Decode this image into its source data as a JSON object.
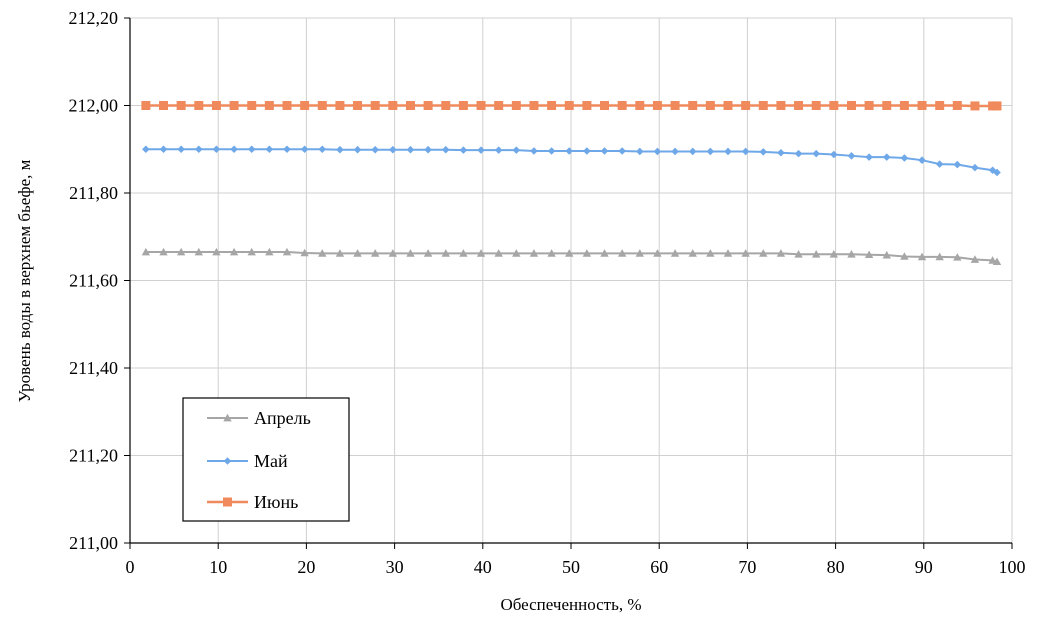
{
  "chart_data": {
    "type": "line",
    "title": "",
    "xlabel": "Обеспеченность, %",
    "ylabel": "Уровень воды в верхнем бьефе, м",
    "xlim": [
      0,
      100
    ],
    "ylim": [
      211.0,
      212.2
    ],
    "x_ticks": [
      0,
      10,
      20,
      30,
      40,
      50,
      60,
      70,
      80,
      90,
      100
    ],
    "x_tick_labels": [
      "0",
      "10",
      "20",
      "30",
      "40",
      "50",
      "60",
      "70",
      "80",
      "90",
      "100"
    ],
    "y_ticks": [
      211.0,
      211.2,
      211.4,
      211.6,
      211.8,
      212.0,
      212.2
    ],
    "y_tick_labels": [
      "211,00",
      "211,20",
      "211,40",
      "211,60",
      "211,80",
      "212,00",
      "212,20"
    ],
    "grid": true,
    "legend_position": "bottom-left",
    "series": [
      {
        "name": "Апрель",
        "color": "#a6a6a6",
        "marker": "triangle",
        "x": [
          1.8,
          3.8,
          5.8,
          7.8,
          9.8,
          11.8,
          13.8,
          15.8,
          17.8,
          19.8,
          21.8,
          23.8,
          25.8,
          27.8,
          29.8,
          31.8,
          33.8,
          35.8,
          37.8,
          39.8,
          41.8,
          43.8,
          45.8,
          47.8,
          49.8,
          51.8,
          53.8,
          55.8,
          57.8,
          59.8,
          61.8,
          63.8,
          65.8,
          67.8,
          69.8,
          71.8,
          73.8,
          75.8,
          77.8,
          79.8,
          81.8,
          83.8,
          85.8,
          87.8,
          89.8,
          91.8,
          93.8,
          95.8,
          97.8,
          98.3
        ],
        "y": [
          211.665,
          211.665,
          211.665,
          211.665,
          211.665,
          211.665,
          211.665,
          211.665,
          211.665,
          211.663,
          211.662,
          211.662,
          211.662,
          211.662,
          211.662,
          211.662,
          211.662,
          211.662,
          211.662,
          211.662,
          211.662,
          211.662,
          211.662,
          211.662,
          211.662,
          211.662,
          211.662,
          211.662,
          211.662,
          211.662,
          211.662,
          211.662,
          211.662,
          211.662,
          211.662,
          211.662,
          211.662,
          211.66,
          211.66,
          211.66,
          211.66,
          211.659,
          211.658,
          211.655,
          211.654,
          211.654,
          211.653,
          211.648,
          211.646,
          211.643
        ]
      },
      {
        "name": "Май",
        "color": "#6fa8e8",
        "marker": "diamond",
        "x": [
          1.8,
          3.8,
          5.8,
          7.8,
          9.8,
          11.8,
          13.8,
          15.8,
          17.8,
          19.8,
          21.8,
          23.8,
          25.8,
          27.8,
          29.8,
          31.8,
          33.8,
          35.8,
          37.8,
          39.8,
          41.8,
          43.8,
          45.8,
          47.8,
          49.8,
          51.8,
          53.8,
          55.8,
          57.8,
          59.8,
          61.8,
          63.8,
          65.8,
          67.8,
          69.8,
          71.8,
          73.8,
          75.8,
          77.8,
          79.8,
          81.8,
          83.8,
          85.8,
          87.8,
          89.8,
          91.8,
          93.8,
          95.8,
          97.8,
          98.3
        ],
        "y": [
          211.9,
          211.9,
          211.9,
          211.9,
          211.9,
          211.9,
          211.9,
          211.9,
          211.9,
          211.9,
          211.9,
          211.899,
          211.899,
          211.899,
          211.899,
          211.899,
          211.899,
          211.899,
          211.898,
          211.898,
          211.898,
          211.898,
          211.896,
          211.896,
          211.896,
          211.896,
          211.896,
          211.896,
          211.895,
          211.895,
          211.895,
          211.895,
          211.895,
          211.895,
          211.895,
          211.894,
          211.892,
          211.89,
          211.89,
          211.888,
          211.885,
          211.882,
          211.882,
          211.88,
          211.875,
          211.866,
          211.865,
          211.858,
          211.852,
          211.847
        ]
      },
      {
        "name": "Июнь",
        "color": "#f08a5d",
        "marker": "square",
        "x": [
          1.8,
          3.8,
          5.8,
          7.8,
          9.8,
          11.8,
          13.8,
          15.8,
          17.8,
          19.8,
          21.8,
          23.8,
          25.8,
          27.8,
          29.8,
          31.8,
          33.8,
          35.8,
          37.8,
          39.8,
          41.8,
          43.8,
          45.8,
          47.8,
          49.8,
          51.8,
          53.8,
          55.8,
          57.8,
          59.8,
          61.8,
          63.8,
          65.8,
          67.8,
          69.8,
          71.8,
          73.8,
          75.8,
          77.8,
          79.8,
          81.8,
          83.8,
          85.8,
          87.8,
          89.8,
          91.8,
          93.8,
          95.8,
          97.8,
          98.3
        ],
        "y": [
          212.0,
          212.0,
          212.0,
          212.0,
          212.0,
          212.0,
          212.0,
          212.0,
          212.0,
          212.0,
          212.0,
          212.0,
          212.0,
          212.0,
          212.0,
          212.0,
          212.0,
          212.0,
          212.0,
          212.0,
          212.0,
          212.0,
          212.0,
          212.0,
          212.0,
          212.0,
          212.0,
          212.0,
          212.0,
          212.0,
          212.0,
          212.0,
          212.0,
          212.0,
          212.0,
          212.0,
          212.0,
          212.0,
          212.0,
          212.0,
          212.0,
          212.0,
          212.0,
          212.0,
          212.0,
          212.0,
          212.0,
          211.999,
          211.999,
          211.999
        ]
      }
    ]
  }
}
